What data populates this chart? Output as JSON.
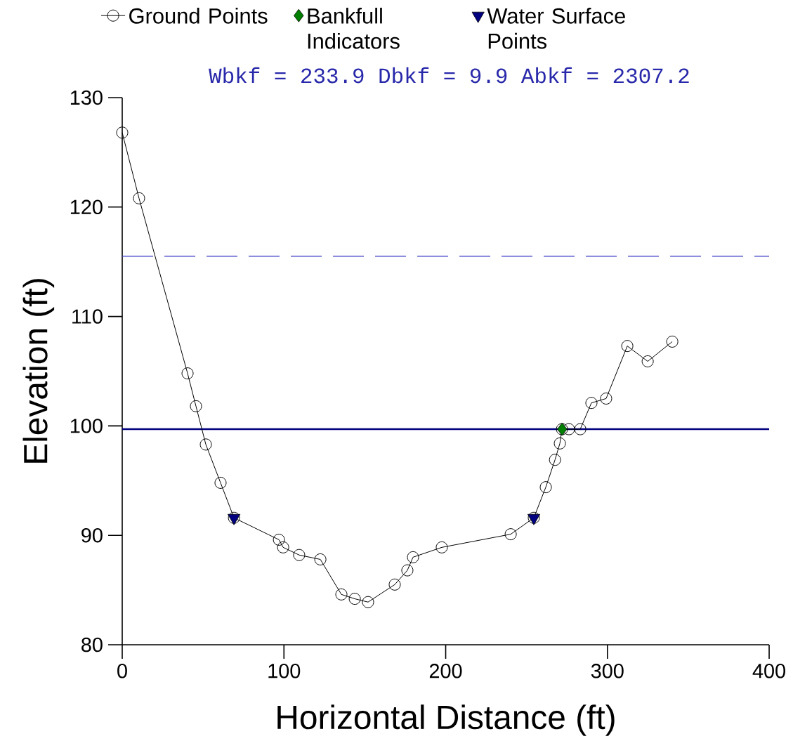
{
  "chart_data": {
    "type": "line",
    "xlabel": "Horizontal Distance (ft)",
    "ylabel": "Elevation (ft)",
    "annotations": [
      "Wbkf = 233.9  Dbkf = 9.9  Abkf = 2307.2"
    ],
    "xlim": [
      0,
      400
    ],
    "ylim": [
      80,
      130
    ],
    "xticks": [
      0,
      100,
      200,
      300,
      400
    ],
    "yticks": [
      80,
      90,
      100,
      110,
      120,
      130
    ],
    "grid": false,
    "legend": "top",
    "ref_lines": [
      {
        "axis": "y",
        "value": 99.7,
        "color": "#000080",
        "line_style": "solid"
      },
      {
        "axis": "y",
        "value": 115.5,
        "color": "#3c3cc8",
        "line_style": "dashed"
      }
    ],
    "series": [
      {
        "name": "Ground Points",
        "type": "line",
        "color": "#000000",
        "marker": "circle",
        "x": [
          0,
          10.4,
          40.4,
          45.6,
          51.7,
          60.8,
          69.1,
          96.9,
          99.5,
          109.4,
          122.5,
          135.5,
          143.8,
          152,
          168.5,
          176.3,
          179.8,
          197.6,
          240.2,
          254.5,
          261.9,
          267.6,
          270.6,
          271.9,
          276.2,
          283.2,
          290.1,
          299.2,
          312.3,
          324.9,
          340.1
        ],
        "values": [
          126.8,
          120.8,
          104.8,
          101.8,
          98.3,
          94.8,
          91.6,
          89.6,
          88.9,
          88.2,
          87.8,
          84.6,
          84.2,
          83.9,
          85.5,
          86.8,
          88.0,
          88.9,
          90.1,
          91.6,
          94.4,
          96.9,
          98.4,
          99.7,
          99.7,
          99.7,
          102.1,
          102.5,
          107.3,
          105.9,
          107.7
        ]
      },
      {
        "name": "Bankfull Indicators",
        "type": "scatter",
        "color": "#007f00",
        "marker": "diamond",
        "x": [
          272
        ],
        "values": [
          99.7
        ]
      },
      {
        "name": "Water Surface Points",
        "type": "scatter",
        "color": "#000080",
        "marker": "triangle",
        "x": [
          69.1,
          254.5
        ],
        "values": [
          91.6,
          91.6
        ]
      }
    ]
  }
}
